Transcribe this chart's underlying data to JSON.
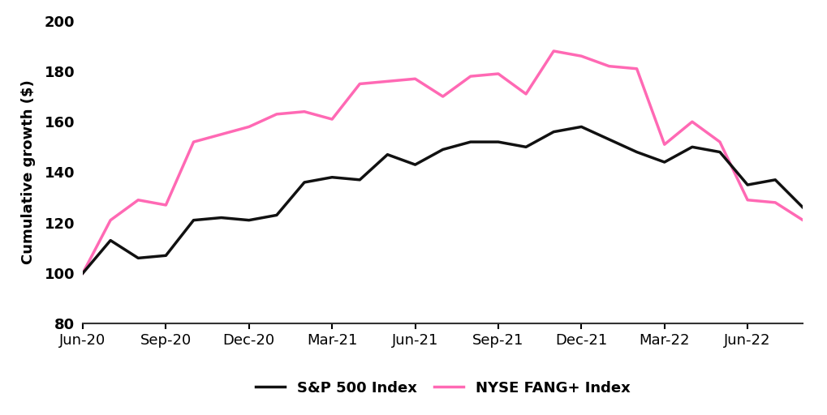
{
  "title": "",
  "ylabel": "Cumulative growth ($)",
  "xlabel": "",
  "ylim": [
    80,
    200
  ],
  "yticks": [
    80,
    100,
    120,
    140,
    160,
    180,
    200
  ],
  "xtick_labels": [
    "Jun-20",
    "Sep-20",
    "Dec-20",
    "Mar-21",
    "Jun-21",
    "Sep-21",
    "Dec-21",
    "Mar-22",
    "Jun-22"
  ],
  "sp500_color": "#111111",
  "fang_color": "#FF69B4",
  "sp500_label": "S&P 500 Index",
  "fang_label": "NYSE FANG+ Index",
  "linewidth": 2.5,
  "background_color": "#ffffff",
  "sp500_values": [
    100,
    113,
    106,
    107,
    121,
    122,
    121,
    123,
    136,
    138,
    137,
    147,
    143,
    149,
    152,
    152,
    150,
    156,
    158,
    153,
    148,
    144,
    150,
    148,
    135,
    137,
    126
  ],
  "fang_values": [
    100,
    121,
    129,
    127,
    152,
    155,
    158,
    163,
    164,
    161,
    175,
    176,
    177,
    170,
    178,
    179,
    171,
    188,
    186,
    182,
    181,
    151,
    160,
    152,
    129,
    128,
    121
  ],
  "x_indices": [
    0,
    1,
    2,
    3,
    4,
    5,
    6,
    7,
    8,
    9,
    10,
    11,
    12,
    13,
    14,
    15,
    16,
    17,
    18,
    19,
    20,
    21,
    22,
    23,
    24,
    25,
    26
  ],
  "xtick_positions": [
    0,
    3,
    6,
    9,
    12,
    15,
    18,
    21,
    24
  ],
  "xlim": [
    0,
    26
  ],
  "fontsize_ticks": 13,
  "fontsize_ylabel": 13,
  "fontsize_legend": 13
}
